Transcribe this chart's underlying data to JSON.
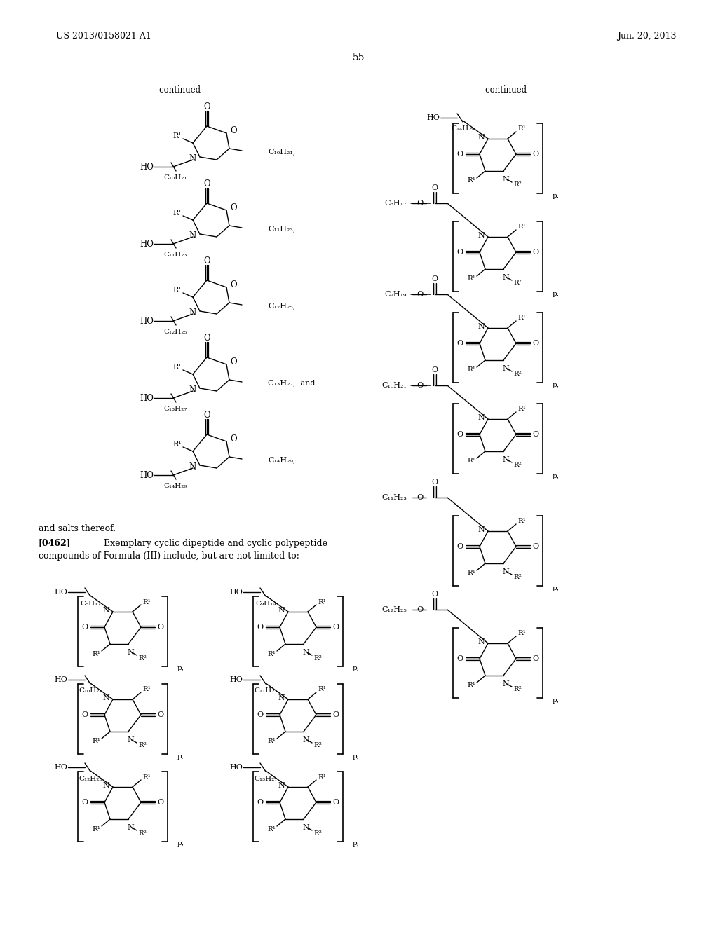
{
  "bg": "#ffffff",
  "header_left": "US 2013/0158021 A1",
  "header_right": "Jun. 20, 2013",
  "page_num": "55"
}
